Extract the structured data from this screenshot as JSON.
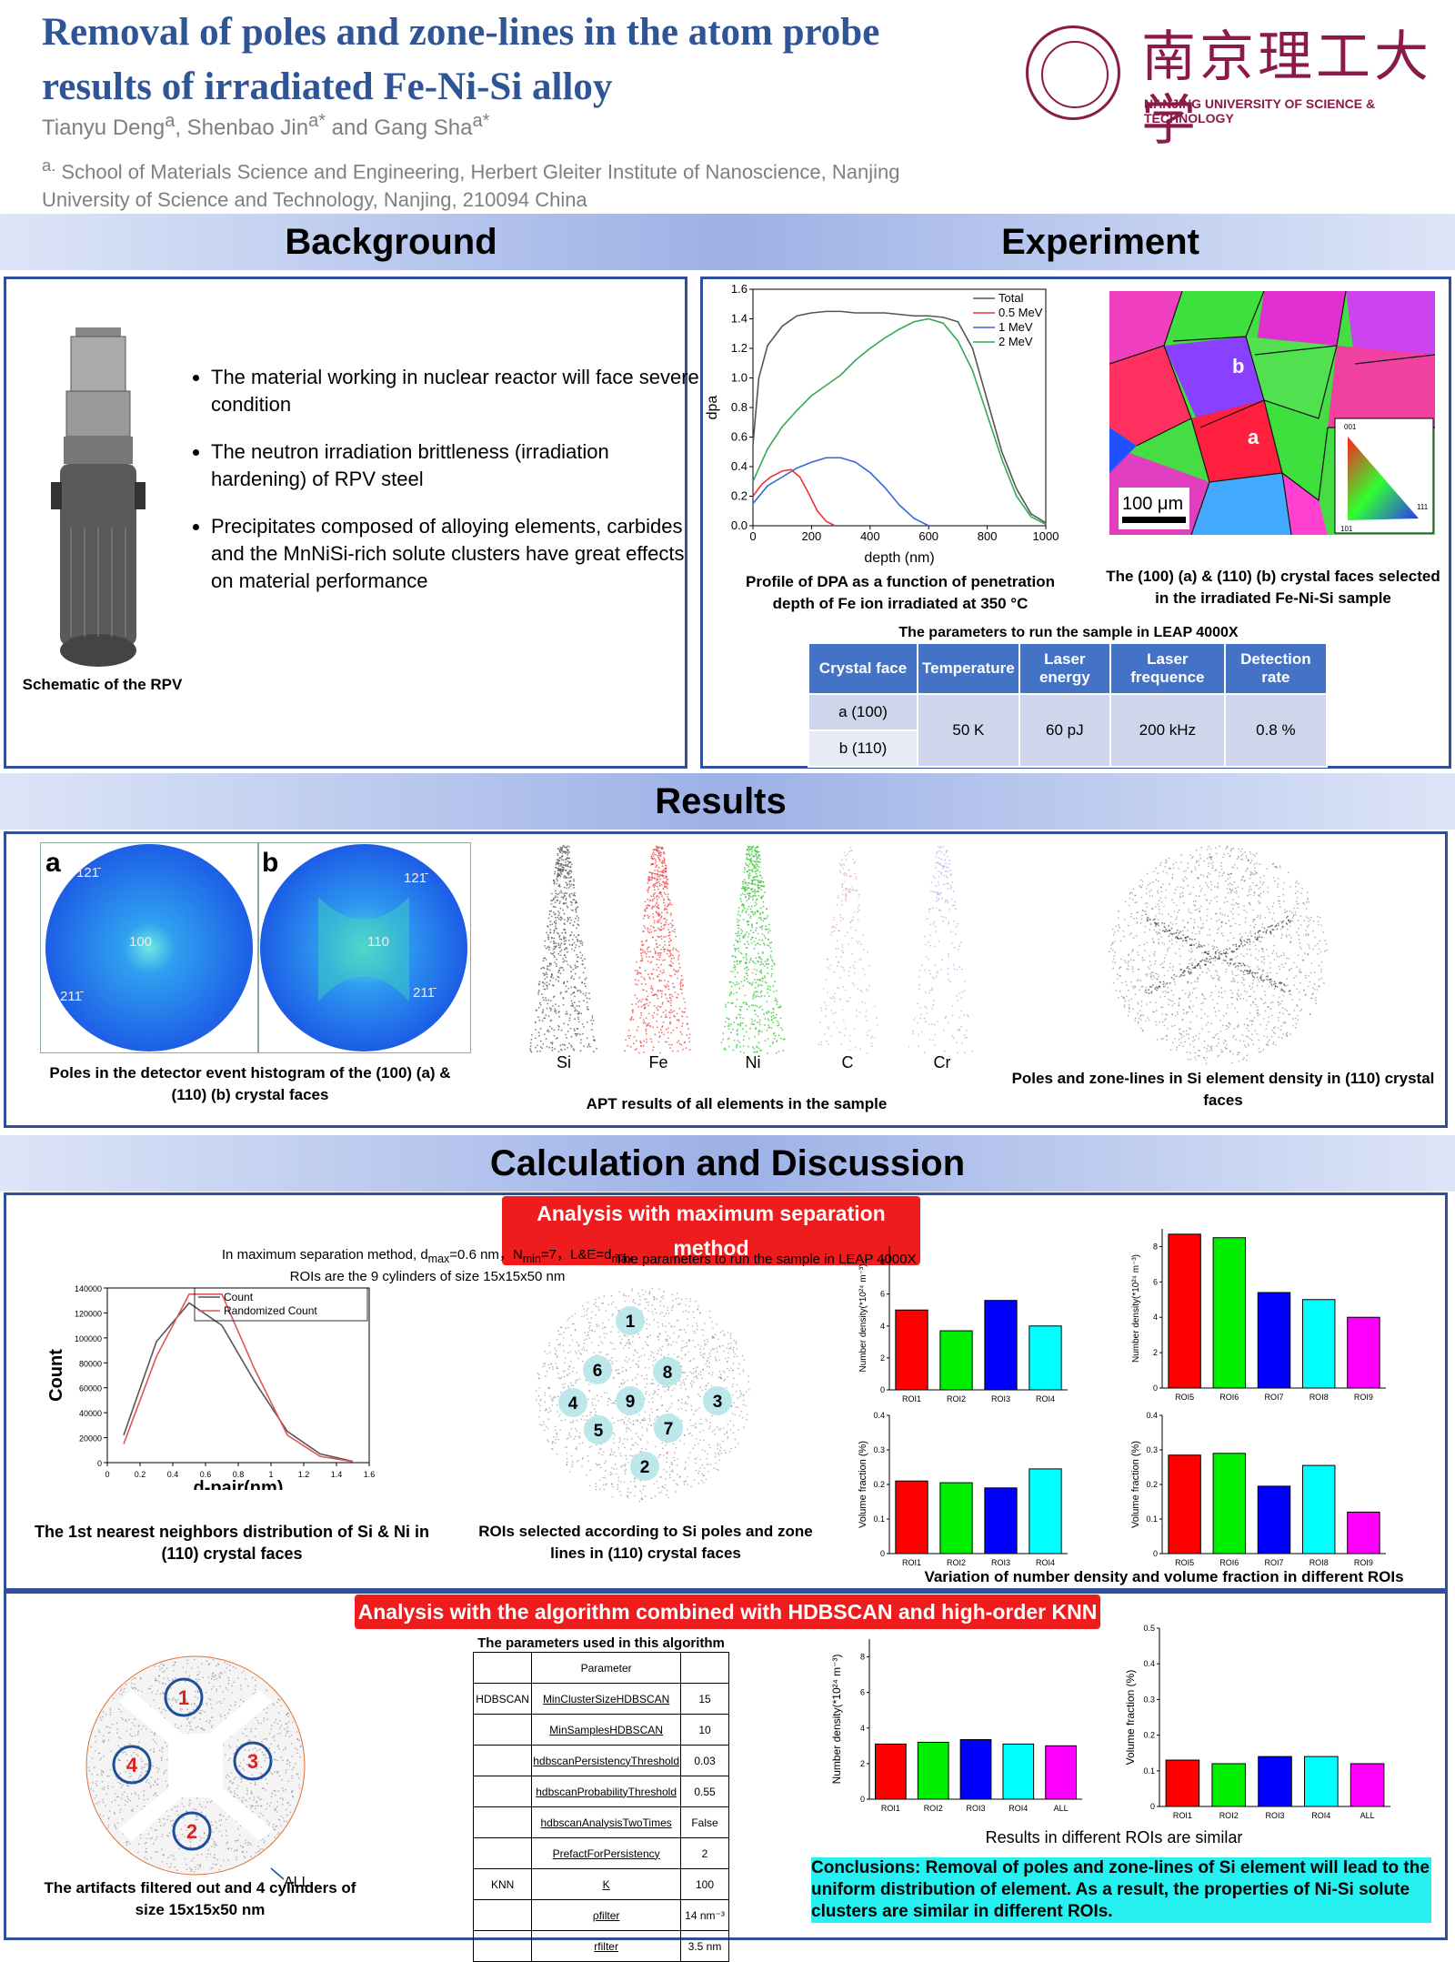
{
  "header": {
    "title": "Removal of poles and zone-lines in the atom probe results of irradiated Fe-Ni-Si alloy",
    "authors": [
      {
        "name": "Tianyu Deng",
        "sup": "a"
      },
      {
        "name": "Shenbao Jin",
        "sup": "a*"
      },
      {
        "name": "Gang Sha",
        "sup": "a*"
      }
    ],
    "author_sep1": ", ",
    "author_sep2": " and ",
    "affiliation_mark": "a.",
    "affiliation": "School of Materials Science and Engineering, Herbert Gleiter Institute of Nanoscience, Nanjing University of Science and Technology, Nanjing, 210094 China",
    "logo_cn": "南京理工大学",
    "logo_en": "NANJING UNIVERSITY OF SCIENCE & TECHNOLOGY",
    "brand_color": "#8a1a4a",
    "title_color": "#2f5597"
  },
  "background": {
    "heading": "Background",
    "bullets": [
      "The material working in nuclear reactor will face severe condition",
      "The neutron irradiation brittleness (irradiation hardening) of RPV steel",
      "Precipitates composed of alloying elements, carbides and the MnNiSi-rich solute clusters have great effects on material performance"
    ],
    "rpv_caption": "Schematic of the RPV"
  },
  "experiment": {
    "heading": "Experiment",
    "dpa_caption": "Profile of DPA as a function of penetration depth of Fe ion irradiated at 350 °C",
    "ebsd_caption": "The (100) (a) & (110) (b) crystal faces selected in the irradiated Fe-Ni-Si sample",
    "ebsd_labels": {
      "a": "a",
      "b": "b",
      "scale": "100 μm",
      "ipf_001": "001",
      "ipf_101": "101",
      "ipf_111": "111"
    },
    "table_title": "The parameters to run the sample in LEAP 4000X",
    "table_headers": [
      "Crystal face",
      "Temperature",
      "Laser energy",
      "Laser frequence",
      "Detection rate"
    ],
    "table_faces": [
      "a (100)",
      "b (110)"
    ],
    "table_values": {
      "temperature": "50 K",
      "laser_energy": "60 pJ",
      "laser_frequence": "200 kHz",
      "detection_rate": "0.8 %"
    }
  },
  "results": {
    "heading": "Results",
    "poles_caption": "Poles in the detector event histogram of the (100) (a) & (110) (b) crystal faces",
    "poles_labels": {
      "a": "a",
      "b": "b",
      "a_top": "121̄",
      "a_center": "100",
      "a_bottom": "211̄",
      "b_top": "121̄",
      "b_center": "110",
      "b_bottom": "211̄"
    },
    "elements": [
      "Si",
      "Fe",
      "Ni",
      "C",
      "Cr"
    ],
    "element_colors": [
      "#555555",
      "#f04040",
      "#30c030",
      "#d8b0b0",
      "#b0b0e8"
    ],
    "apt_caption": "APT results of all elements in the sample",
    "si_caption": "Poles and zone-lines in Si element density in (110) crystal faces"
  },
  "calc": {
    "heading": "Calculation and Discussion",
    "ms_label": "Analysis with maximum separation method",
    "ms_params_line1": "In maximum separation method, d",
    "ms_params_sub1": "max",
    "ms_params_mid1": "=0.6 nm，N",
    "ms_params_sub2": "min",
    "ms_params_mid2": "=7，L&E=d",
    "ms_params_sub3": "max",
    "ms_params_line2": "ROIs are the 9 cylinders of size 15x15x50 nm",
    "ms_overlap_text": "The parameters to run the sample in LEAP 4000X",
    "nn_caption": "The 1st nearest neighbors distribution of Si & Ni in (110) crystal faces",
    "roi_caption": "ROIs selected according to Si poles and zone lines in (110) crystal faces",
    "roi_numbers": [
      "1",
      "2",
      "3",
      "4",
      "5",
      "6",
      "7",
      "8",
      "9"
    ],
    "variation_caption": "Variation of number density and volume fraction in different ROIs",
    "hdb_label": "Analysis with  the algorithm combined with HDBSCAN and high-order KNN",
    "artifact_caption": "The artifacts filtered out and 4 cylinders of size 15x15x50 nm",
    "artifact_numbers": [
      "1",
      "2",
      "3",
      "4"
    ],
    "artifact_all": "ALL",
    "param_table_title": "The parameters used in this algorithm",
    "param_table_header": "Parameter",
    "param_rows": [
      {
        "group": "HDBSCAN",
        "name": "MinClusterSizeHDBSCAN",
        "value": "15"
      },
      {
        "group": "",
        "name": "MinSamplesHDBSCAN",
        "value": "10"
      },
      {
        "group": "",
        "name": "hdbscanPersistencyThreshold",
        "value": "0.03"
      },
      {
        "group": "",
        "name": "hdbscanProbabilityThreshold",
        "value": "0.55"
      },
      {
        "group": "",
        "name": "hdbscanAnalysisTwoTimes",
        "value": "False"
      },
      {
        "group": "",
        "name": "PrefactForPersistency",
        "value": "2"
      },
      {
        "group": "KNN",
        "name": "K",
        "value": "100"
      },
      {
        "group": "",
        "name": "ρfilter",
        "value": "14 nm⁻³"
      },
      {
        "group": "",
        "name": "rfilter",
        "value": "3.5 nm"
      }
    ],
    "roi_similar_caption": "Results in different ROIs are similar",
    "conclusion": "Conclusions: Removal of poles and zone-lines of Si element will lead to the uniform distribution of element. As a result, the properties of Ni-Si solute clusters are similar in different ROIs."
  },
  "chart_data": [
    {
      "id": "dpa",
      "type": "line",
      "xlabel": "depth (nm)",
      "ylabel": "dpa",
      "xlim": [
        0,
        1000
      ],
      "ylim": [
        0,
        1.6
      ],
      "xticks": [
        0,
        200,
        400,
        600,
        800,
        1000
      ],
      "yticks": [
        0,
        0.2,
        0.4,
        0.6,
        0.8,
        1.0,
        1.2,
        1.4,
        1.6
      ],
      "legend": "top-right",
      "series": [
        {
          "name": "Total",
          "color": "#555555",
          "x": [
            0,
            20,
            50,
            100,
            150,
            200,
            250,
            300,
            350,
            400,
            450,
            500,
            550,
            600,
            650,
            700,
            750,
            800,
            850,
            900,
            950,
            1000
          ],
          "y": [
            0.55,
            1.0,
            1.22,
            1.35,
            1.42,
            1.44,
            1.45,
            1.45,
            1.44,
            1.44,
            1.44,
            1.43,
            1.42,
            1.42,
            1.41,
            1.38,
            1.2,
            0.85,
            0.5,
            0.25,
            0.08,
            0.02
          ]
        },
        {
          "name": "0.5 MeV",
          "color": "#ee3333",
          "x": [
            0,
            30,
            60,
            100,
            130,
            160,
            190,
            220,
            250,
            280
          ],
          "y": [
            0.2,
            0.28,
            0.33,
            0.37,
            0.38,
            0.33,
            0.22,
            0.1,
            0.03,
            0.0
          ]
        },
        {
          "name": "1 MeV",
          "color": "#3366dd",
          "x": [
            0,
            50,
            100,
            150,
            200,
            250,
            300,
            350,
            400,
            450,
            500,
            550,
            600
          ],
          "y": [
            0.15,
            0.27,
            0.33,
            0.39,
            0.43,
            0.46,
            0.46,
            0.43,
            0.36,
            0.26,
            0.14,
            0.05,
            0.0
          ]
        },
        {
          "name": "2 MeV",
          "color": "#33aa55",
          "x": [
            0,
            50,
            100,
            150,
            200,
            250,
            300,
            350,
            400,
            450,
            500,
            550,
            600,
            650,
            700,
            750,
            800,
            850,
            900,
            950,
            1000
          ],
          "y": [
            0.3,
            0.52,
            0.67,
            0.78,
            0.88,
            0.95,
            1.02,
            1.12,
            1.2,
            1.27,
            1.33,
            1.38,
            1.4,
            1.37,
            1.25,
            1.05,
            0.75,
            0.45,
            0.2,
            0.06,
            0.01
          ]
        }
      ]
    },
    {
      "id": "nn",
      "type": "line",
      "xlabel": "d-pair(nm)",
      "ylabel": "Count",
      "xlim": [
        0,
        1.6
      ],
      "ylim": [
        0,
        140000
      ],
      "xticks": [
        0,
        0.2,
        0.4,
        0.6,
        0.8,
        1.0,
        1.2,
        1.4,
        1.6
      ],
      "yticks": [
        0,
        20000,
        40000,
        60000,
        80000,
        100000,
        120000,
        140000
      ],
      "legend": "top-right",
      "series": [
        {
          "name": "Count",
          "color": "#555555",
          "x": [
            0.1,
            0.3,
            0.5,
            0.7,
            0.9,
            1.1,
            1.3,
            1.5
          ],
          "y": [
            22000,
            97000,
            128000,
            110000,
            65000,
            25000,
            7000,
            1000
          ]
        },
        {
          "name": "Randomized Count",
          "color": "#e05555",
          "x": [
            0.1,
            0.3,
            0.5,
            0.7,
            0.9,
            1.1,
            1.3,
            1.5
          ],
          "y": [
            15000,
            85000,
            135000,
            135000,
            75000,
            22000,
            5000,
            800
          ]
        }
      ]
    },
    {
      "id": "nd1",
      "type": "bar",
      "ylabel": "Number density(*10²⁴ m⁻³)",
      "categories": [
        "ROI1",
        "ROI2",
        "ROI3",
        "ROI4"
      ],
      "values": [
        5.0,
        3.7,
        5.6,
        4.0
      ],
      "colors": [
        "#ff0000",
        "#00ee00",
        "#0000ff",
        "#00ffff"
      ],
      "ylim": [
        0,
        9
      ]
    },
    {
      "id": "nd2",
      "type": "bar",
      "ylabel": "Number density(*10²⁴ m⁻³)",
      "categories": [
        "ROI5",
        "ROI6",
        "ROI7",
        "ROI8",
        "ROI9"
      ],
      "values": [
        8.7,
        8.5,
        5.4,
        5.0,
        4.0
      ],
      "colors": [
        "#ff0000",
        "#00ee00",
        "#0000ff",
        "#00ffff",
        "#ff00ff"
      ],
      "ylim": [
        0,
        9
      ]
    },
    {
      "id": "vf1",
      "type": "bar",
      "ylabel": "Volume fraction  (%)",
      "categories": [
        "ROI1",
        "ROI2",
        "ROI3",
        "ROI4"
      ],
      "values": [
        0.21,
        0.205,
        0.19,
        0.245
      ],
      "colors": [
        "#ff0000",
        "#00ee00",
        "#0000ff",
        "#00ffff"
      ],
      "ylim": [
        0,
        0.4
      ],
      "yticks": [
        0,
        0.1,
        0.2,
        0.3,
        0.4
      ]
    },
    {
      "id": "vf2",
      "type": "bar",
      "ylabel": "Volume fraction  (%)",
      "categories": [
        "ROI5",
        "ROI6",
        "ROI7",
        "ROI8",
        "ROI9"
      ],
      "values": [
        0.285,
        0.29,
        0.195,
        0.255,
        0.12
      ],
      "colors": [
        "#ff0000",
        "#00ee00",
        "#0000ff",
        "#00ffff",
        "#ff00ff"
      ],
      "ylim": [
        0,
        0.4
      ],
      "yticks": [
        0,
        0.1,
        0.2,
        0.3,
        0.4
      ]
    },
    {
      "id": "nd3",
      "type": "bar",
      "ylabel": "Number density(*10²⁴ m⁻³)",
      "categories": [
        "ROI1",
        "ROI2",
        "ROI3",
        "ROI4",
        "ALL"
      ],
      "values": [
        3.1,
        3.2,
        3.35,
        3.1,
        3.0
      ],
      "colors": [
        "#ff0000",
        "#00ee00",
        "#0000ff",
        "#00ffff",
        "#ff00ff"
      ],
      "ylim": [
        0,
        9
      ]
    },
    {
      "id": "vf3",
      "type": "bar",
      "ylabel": "Volume fraction  (%)",
      "categories": [
        "ROI1",
        "ROI2",
        "ROI3",
        "ROI4",
        "ALL"
      ],
      "values": [
        0.13,
        0.12,
        0.14,
        0.14,
        0.12
      ],
      "colors": [
        "#ff0000",
        "#00ee00",
        "#0000ff",
        "#00ffff",
        "#ff00ff"
      ],
      "ylim": [
        0,
        0.5
      ],
      "yticks": [
        0,
        0.1,
        0.2,
        0.3,
        0.4,
        0.5
      ]
    }
  ]
}
